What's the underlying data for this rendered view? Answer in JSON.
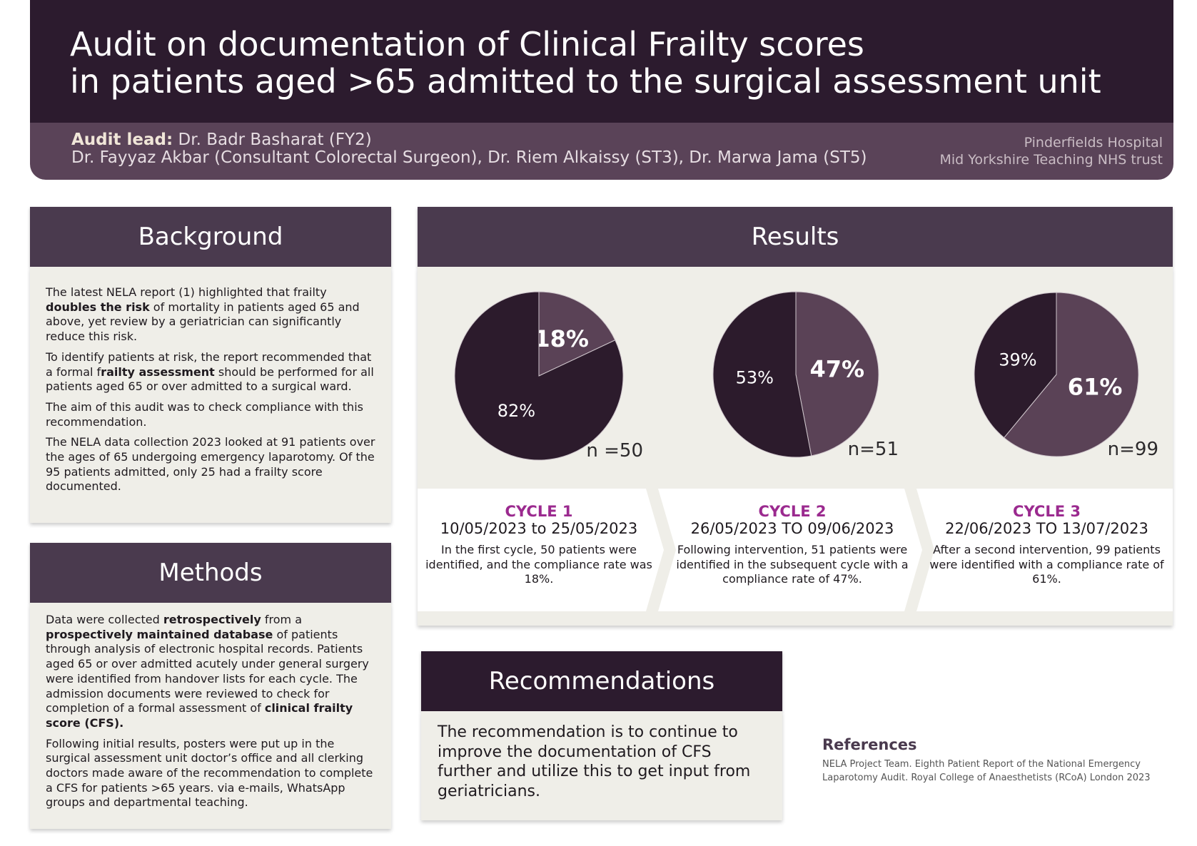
{
  "header": {
    "title_lines": [
      "Audit on documentation of Clinical Frailty scores",
      "in patients aged >65 admitted to the surgical assessment unit"
    ],
    "lead_label": "Audit lead:",
    "lead": "Dr. Badr Basharat (FY2)",
    "team": "Dr. Fayyaz Akbar (Consultant Colorectal Surgeon), Dr. Riem Alkaissy (ST3), Dr. Marwa Jama (ST5)",
    "hospital": "Pinderfields Hospital",
    "trust": "Mid Yorkshire Teaching NHS trust"
  },
  "background": {
    "title": "Background",
    "paragraphs": [
      [
        "The latest NELA report (1) highlighted that frailty ",
        {
          "bold": "doubles the risk"
        },
        " of mortality in patients aged 65 and above, yet review by a geriatrician can significantly reduce this risk."
      ],
      [
        "To identify patients at risk, the report recommended that a formal f",
        {
          "bold": "railty assessment"
        },
        " should be performed for all patients aged 65 or over admitted to a surgical ward."
      ],
      [
        "The aim of this audit was to check compliance with this recommendation."
      ],
      [
        "The NELA data collection 2023 looked at 91 patients over the ages of 65 undergoing emergency laparotomy. Of the 95 patients admitted, only 25 had a frailty score documented."
      ]
    ]
  },
  "methods": {
    "title": "Methods",
    "paragraphs": [
      [
        "Data were collected ",
        {
          "bold": "retrospectively"
        },
        " from a ",
        {
          "bold": "prospectively maintained database"
        },
        " of patients through analysis of electronic hospital records. Patients aged 65 or over admitted acutely under general surgery were identified from handover lists for each cycle. The admission documents were reviewed to check for completion of a formal assessment of ",
        {
          "bold": "clinical frailty score (CFS)."
        }
      ],
      [
        "Following initial results, posters were put up in the surgical assessment unit doctor’s office and all clerking doctors made aware of the recommendation to complete a CFS for patients >65 years.  via e-mails, WhatsApp groups and departmental teaching."
      ]
    ]
  },
  "results": {
    "title": "Results",
    "cycles": [
      {
        "name": "CYCLE 1",
        "dates": "10/05/2023 to 25/05/2023",
        "text": "In the first cycle, 50 patients were identified, and the compliance rate was 18%."
      },
      {
        "name": "CYCLE 2",
        "dates": "26/05/2023 TO 09/06/2023",
        "text": "Following intervention, 51 patients were identified in the subsequent cycle with a compliance rate of 47%."
      },
      {
        "name": "CYCLE 3",
        "dates": "22/06/2023 TO 13/07/2023",
        "text": "After a second intervention, 99 patients were identified with a compliance rate of 61%."
      }
    ]
  },
  "chart_data": [
    {
      "type": "pie",
      "values": [
        18,
        82
      ],
      "value_labels": [
        "18%",
        "82%"
      ],
      "colors": [
        "#5a4256",
        "#2c1b2c"
      ],
      "annotation": "n =50"
    },
    {
      "type": "pie",
      "values": [
        47,
        53
      ],
      "value_labels": [
        "47%",
        "53%"
      ],
      "colors": [
        "#5a4256",
        "#2c1b2c"
      ],
      "annotation": "n=51"
    },
    {
      "type": "pie",
      "values": [
        61,
        39
      ],
      "value_labels": [
        "61%",
        "39%"
      ],
      "colors": [
        "#5a4256",
        "#2c1b2c"
      ],
      "annotation": "n=99"
    }
  ],
  "recommendations": {
    "title": "Recommendations",
    "text": "The recommendation is to continue to improve the documentation of CFS further and utilize this to get input from geriatricians."
  },
  "references": {
    "title": "References",
    "text": "NELA Project Team. Eighth Patient Report of the National Emergency Laparotomy Audit. Royal College of  Anaesthetists (RCoA) London 2023"
  }
}
